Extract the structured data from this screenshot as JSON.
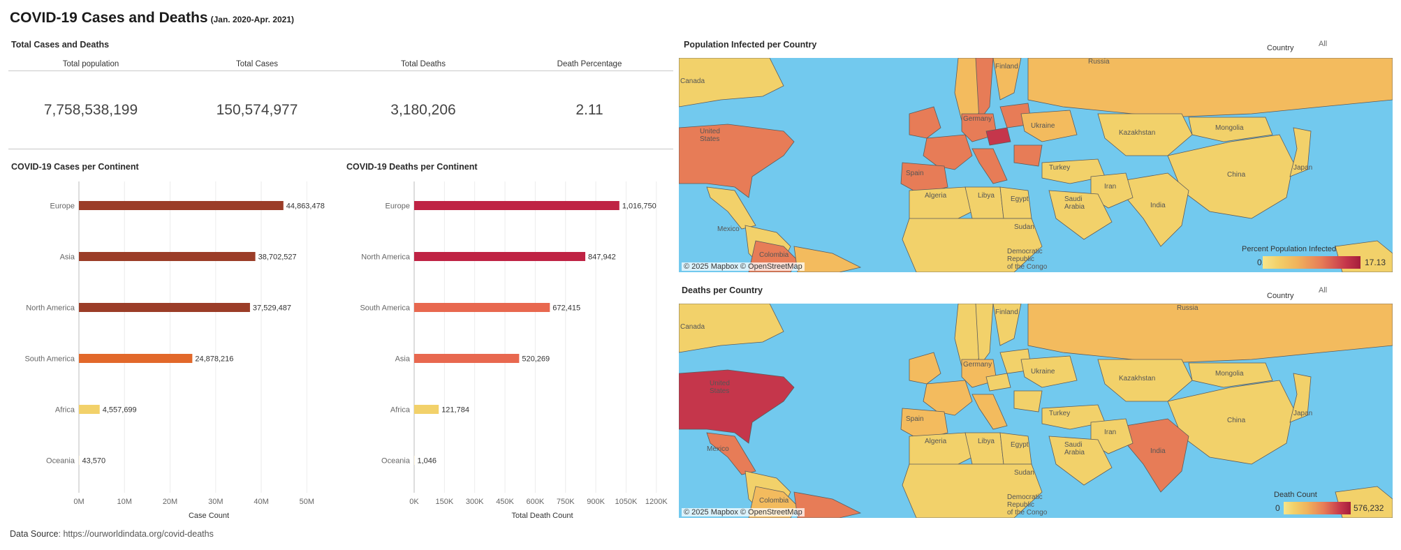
{
  "header": {
    "title": "COVID-19 Cases and Deaths",
    "subtitle": "(Jan. 2020-Apr. 2021)"
  },
  "totals": {
    "section_title": "Total Cases and Deaths",
    "columns": [
      {
        "label": "Total population",
        "value": "7,758,538,199"
      },
      {
        "label": "Total Cases",
        "value": "150,574,977"
      },
      {
        "label": "Total Deaths",
        "value": "3,180,206"
      },
      {
        "label": "Death Percentage",
        "value": "2.11"
      }
    ]
  },
  "chart_data": [
    {
      "type": "bar",
      "orientation": "horizontal",
      "title": "COVID-19 Cases per Continent",
      "xlabel": "Case Count",
      "ylabel": "",
      "categories": [
        "Europe",
        "Asia",
        "North America",
        "South America",
        "Africa",
        "Oceania"
      ],
      "values": [
        44863478,
        38702527,
        37529487,
        24878216,
        4557699,
        43570
      ],
      "labels": [
        "44,863,478",
        "38,702,527",
        "37,529,487",
        "24,878,216",
        "4,557,699",
        "43,570"
      ],
      "colors": [
        "#9b3d28",
        "#9b3d28",
        "#9b3d28",
        "#e2682a",
        "#f2d16a",
        "#f9e7b8"
      ],
      "xlim": [
        0,
        57000000
      ],
      "ticks": [
        0,
        10000000,
        20000000,
        30000000,
        40000000,
        50000000
      ],
      "tick_labels": [
        "0M",
        "10M",
        "20M",
        "30M",
        "40M",
        "50M"
      ],
      "grid": true
    },
    {
      "type": "bar",
      "orientation": "horizontal",
      "title": "COVID-19 Deaths per Continent",
      "xlabel": "Total Death Count",
      "ylabel": "",
      "categories": [
        "Europe",
        "North America",
        "South America",
        "Asia",
        "Africa",
        "Oceania"
      ],
      "values": [
        1016750,
        847942,
        672415,
        520269,
        121784,
        1046
      ],
      "labels": [
        "1,016,750",
        "847,942",
        "672,415",
        "520,269",
        "121,784",
        "1,046"
      ],
      "colors": [
        "#bf2344",
        "#bf2344",
        "#e8684f",
        "#e8684f",
        "#f2d16a",
        "#f9e7b8"
      ],
      "xlim": [
        0,
        1270000
      ],
      "ticks": [
        0,
        150000,
        300000,
        450000,
        600000,
        750000,
        900000,
        1050000,
        1200000
      ],
      "tick_labels": [
        "0K",
        "150K",
        "300K",
        "450K",
        "600K",
        "750K",
        "900K",
        "1050K",
        "1200K"
      ],
      "grid": true
    }
  ],
  "map_infected": {
    "title": "Population Infected per Country",
    "filter_label": "Country",
    "filter_value": "All",
    "attribution": "© 2025 Mapbox © OpenStreetMap",
    "legend_title": "Percent Population Infected",
    "legend_min": "0.00",
    "legend_max": "17.13",
    "colors": {
      "water": "#72c9ee",
      "low": "#f2d16a",
      "mid": "#f3bb5e",
      "high": "#e77c57",
      "top": "#c5364b"
    },
    "labels": [
      "Canada",
      "United States",
      "Mexico",
      "Colombia",
      "Russia",
      "Kazakhstan",
      "Mongolia",
      "China",
      "Japan",
      "India",
      "Iran",
      "Saudi Arabia",
      "Egypt",
      "Libya",
      "Algeria",
      "Sudan",
      "Turkey",
      "Ukraine",
      "Germany",
      "Spain",
      "Finland",
      "Democratic Republic of the Congo"
    ]
  },
  "map_deaths": {
    "title": "Deaths per Country",
    "filter_label": "Country",
    "filter_value": "All",
    "attribution": "© 2025 Mapbox © OpenStreetMap",
    "legend_title": "Death Count",
    "legend_min": "0",
    "legend_max": "576,232",
    "labels": [
      "Canada",
      "United States",
      "Mexico",
      "Colombia",
      "Russia",
      "Kazakhstan",
      "Mongolia",
      "China",
      "Japan",
      "India",
      "Iran",
      "Saudi Arabia",
      "Egypt",
      "Libya",
      "Algeria",
      "Sudan",
      "Turkey",
      "Ukraine",
      "Germany",
      "Spain",
      "Finland",
      "Democratic Republic of the Congo"
    ]
  },
  "footer": {
    "label": "Data Source",
    "url": "https://ourworldindata.org/covid-deaths"
  }
}
